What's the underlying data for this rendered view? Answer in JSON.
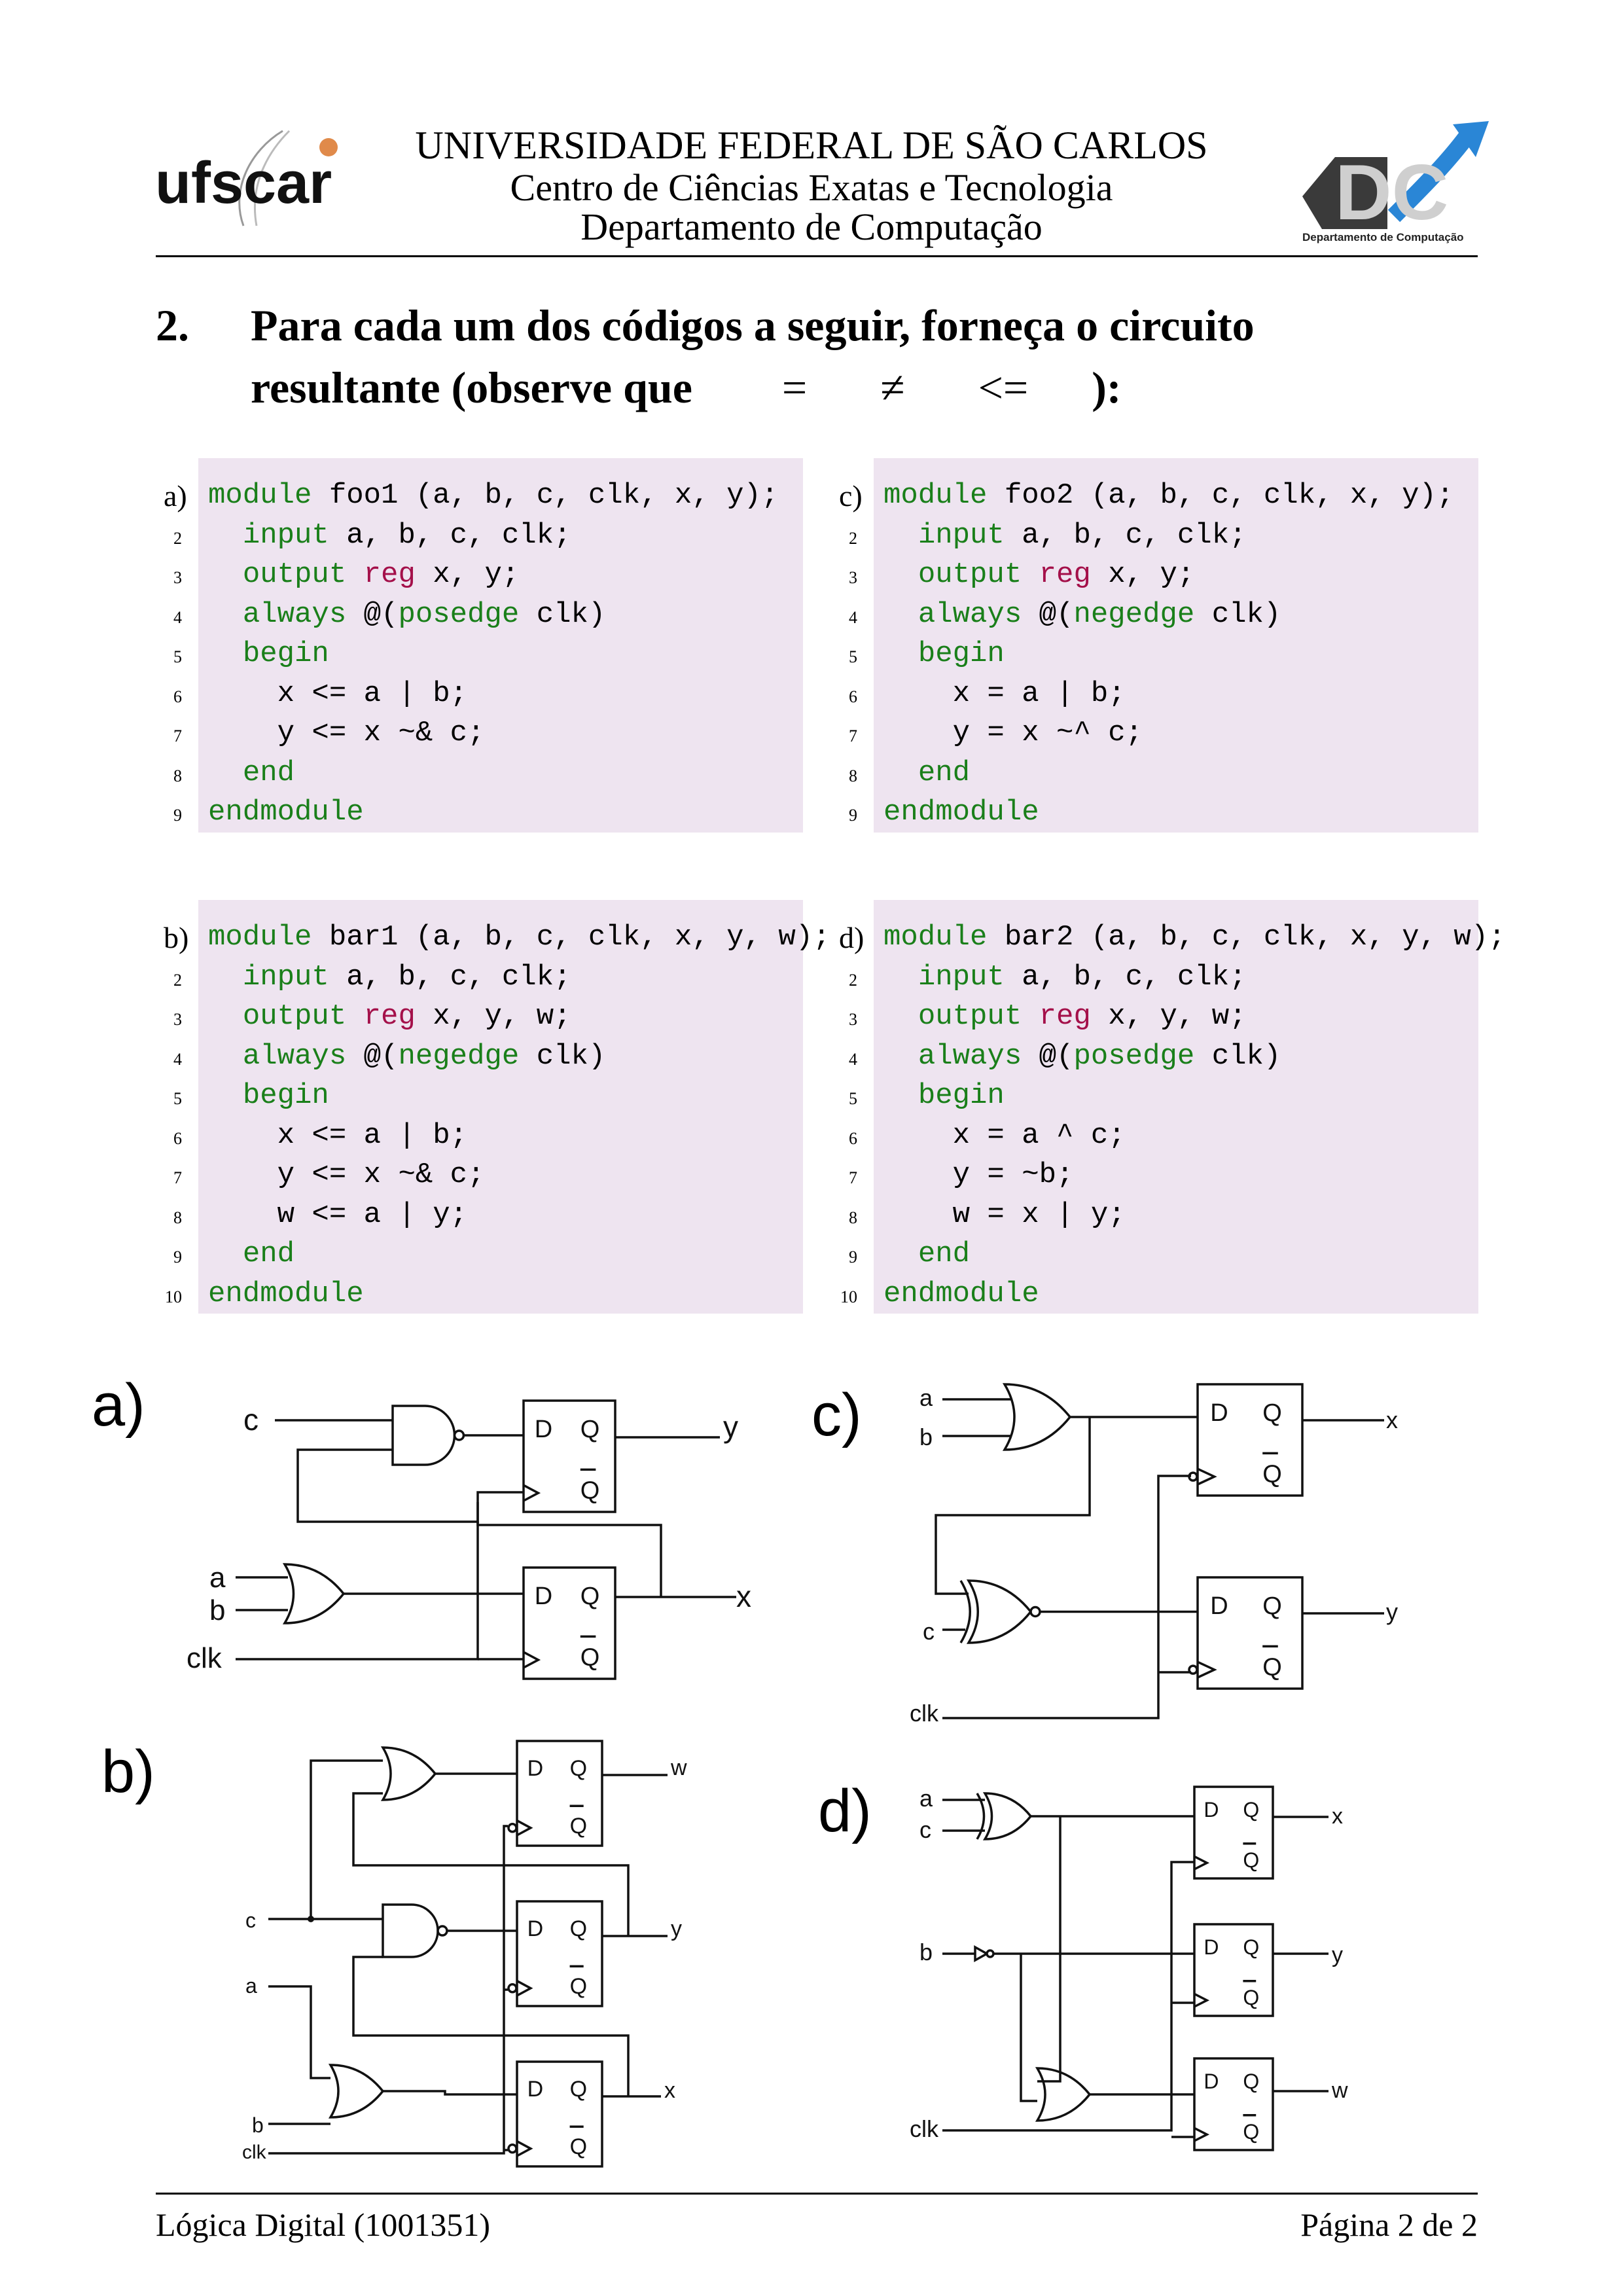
{
  "header": {
    "logo_left_text": "ufscar",
    "line1": "UNIVERSIDADE FEDERAL DE SÃO CARLOS",
    "line2": "Centro de Ciências Exatas e Tecnologia",
    "line3": "Departamento de Computação",
    "logo_right_text": "DC",
    "logo_right_caption": "Departamento de Computação"
  },
  "question": {
    "number": "2.",
    "line1": "Para cada um dos códigos a seguir, forneça o circuito",
    "line2_prefix": "resultante (observe que",
    "sym1": "=",
    "sym2": "≠",
    "sym3": "<=",
    "line2_suffix": "):"
  },
  "code_blocks": {
    "a": {
      "label": "a)",
      "lines": [
        "module foo1 (a, b, c, clk, x, y);",
        "  input a, b, c, clk;",
        "  output reg x, y;",
        "  always @(posedge clk)",
        "  begin",
        "    x <= a | b;",
        "    y <= x ~& c;",
        "  end",
        "endmodule"
      ]
    },
    "c": {
      "label": "c)",
      "lines": [
        "module foo2 (a, b, c, clk, x, y);",
        "  input a, b, c, clk;",
        "  output reg x, y;",
        "  always @(negedge clk)",
        "  begin",
        "    x = a | b;",
        "    y = x ~^ c;",
        "  end",
        "endmodule"
      ]
    },
    "b": {
      "label": "b)",
      "lines": [
        "module bar1 (a, b, c, clk, x, y, w);",
        "  input a, b, c, clk;",
        "  output reg x, y, w;",
        "  always @(negedge clk)",
        "  begin",
        "    x <= a | b;",
        "    y <= x ~& c;",
        "    w <= a | y;",
        "  end",
        "endmodule"
      ]
    },
    "d": {
      "label": "d)",
      "lines": [
        "module bar2 (a, b, c, clk, x, y, w);",
        "  input a, b, c, clk;",
        "  output reg x, y, w;",
        "  always @(posedge clk)",
        "  begin",
        "    x = a ^ c;",
        "    y = ~b;",
        "    w = x | y;",
        "  end",
        "endmodule"
      ]
    }
  },
  "line_numbers": [
    "2",
    "3",
    "4",
    "5",
    "6",
    "7",
    "8",
    "9",
    "10"
  ],
  "circuits": {
    "a": {
      "label": "a)",
      "inputs": [
        "c",
        "a",
        "b",
        "clk"
      ],
      "outputs": [
        "y",
        "x"
      ],
      "ff_d": "D",
      "ff_q": "Q",
      "ff_qbar": "Q"
    },
    "b": {
      "label": "b)",
      "inputs": [
        "c",
        "a",
        "b",
        "clk"
      ],
      "outputs": [
        "w",
        "y",
        "x"
      ],
      "ff_d": "D",
      "ff_q": "Q",
      "ff_qbar": "Q"
    },
    "c": {
      "label": "c)",
      "inputs": [
        "a",
        "b",
        "c",
        "clk"
      ],
      "outputs": [
        "x",
        "y"
      ],
      "ff_d": "D",
      "ff_q": "Q",
      "ff_qbar": "Q"
    },
    "d": {
      "label": "d)",
      "inputs": [
        "a",
        "c",
        "b",
        "clk"
      ],
      "outputs": [
        "x",
        "y",
        "w"
      ],
      "ff_d": "D",
      "ff_q": "Q",
      "ff_qbar": "Q"
    }
  },
  "footer": {
    "left": "Lógica Digital (1001351)",
    "right": "Página 2 de 2"
  },
  "colors": {
    "code_bg": "#eee4f0",
    "keyword": "#1a7f1a",
    "reg": "#a4104a"
  }
}
